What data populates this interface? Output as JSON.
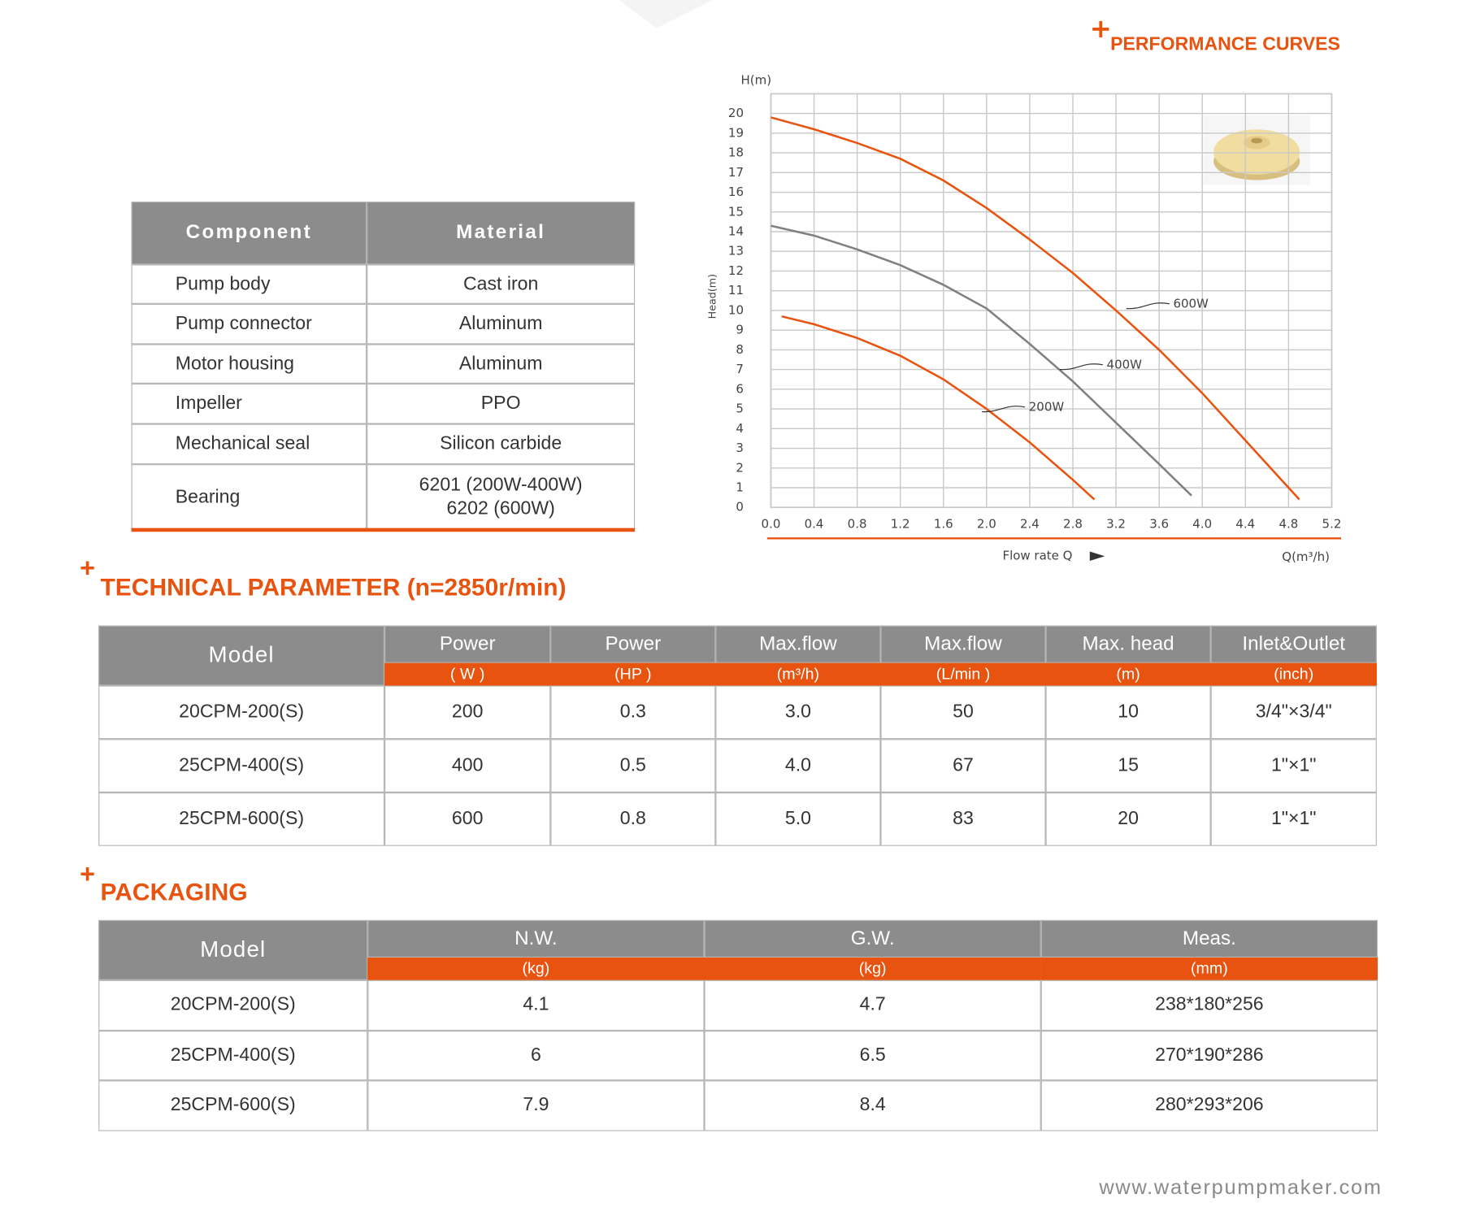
{
  "chart_data": {
    "type": "line",
    "title": "PERFORMANCE CURVES",
    "y_unit_label": "H(m)",
    "ylabel": "Head(m)",
    "xlabel": "Flow rate Q",
    "x_unit_label": "Q(m³/h)",
    "xlim": [
      0,
      5.2
    ],
    "ylim": [
      0,
      21
    ],
    "xticks": [
      {
        "value": 0,
        "label": "0.0"
      },
      0.4,
      0.8,
      1.2,
      1.6,
      {
        "value": 2,
        "label": "2.0"
      },
      2.4,
      2.8,
      3.2,
      3.6,
      {
        "value": 4,
        "label": "4.0"
      },
      4.4,
      4.8,
      5.2
    ],
    "yticks": [
      0,
      1,
      2,
      3,
      4,
      5,
      6,
      7,
      8,
      9,
      10,
      11,
      12,
      13,
      14,
      15,
      16,
      17,
      18,
      19,
      20
    ],
    "grid": true,
    "series": [
      {
        "name": "600W",
        "color": "#e8540f",
        "x": [
          0,
          0.4,
          0.8,
          1.2,
          1.6,
          2.0,
          2.4,
          2.8,
          3.2,
          3.6,
          4.0,
          4.4,
          4.9
        ],
        "values": [
          19.8,
          19.2,
          18.5,
          17.7,
          16.6,
          15.2,
          13.6,
          11.9,
          10.0,
          8.0,
          5.8,
          3.4,
          0.4
        ]
      },
      {
        "name": "400W",
        "color": "#808080",
        "x": [
          0,
          0.4,
          0.8,
          1.2,
          1.6,
          2.0,
          2.4,
          2.8,
          3.2,
          3.6,
          3.9
        ],
        "values": [
          14.3,
          13.8,
          13.1,
          12.3,
          11.3,
          10.1,
          8.3,
          6.4,
          4.3,
          2.2,
          0.6
        ]
      },
      {
        "name": "200W",
        "color": "#e8540f",
        "x": [
          0.1,
          0.4,
          0.8,
          1.2,
          1.6,
          2.0,
          2.4,
          2.8,
          3.0
        ],
        "values": [
          9.7,
          9.3,
          8.6,
          7.7,
          6.5,
          5.0,
          3.3,
          1.4,
          0.4
        ]
      }
    ]
  },
  "materials": {
    "headers": [
      "Component",
      "Material"
    ],
    "rows": [
      [
        "Pump body",
        [
          "Cast iron"
        ]
      ],
      [
        "Pump connector",
        [
          "Aluminum"
        ]
      ],
      [
        "Motor housing",
        [
          "Aluminum"
        ]
      ],
      [
        "Impeller",
        [
          "PPO"
        ]
      ],
      [
        "Mechanical seal",
        [
          "Silicon carbide"
        ]
      ],
      [
        "Bearing",
        [
          "6201 (200W-400W)",
          "6202 (600W)"
        ]
      ]
    ]
  },
  "technical_parameter": {
    "title": "TECHNICAL PARAMETER  (n=2850r/min)",
    "headers": [
      {
        "name": "Model"
      },
      {
        "name": "Power",
        "unit": "( W )"
      },
      {
        "name": "Power",
        "unit": "(HP )"
      },
      {
        "name": "Max.flow",
        "unit": "(m³/h)"
      },
      {
        "name": "Max.flow",
        "unit": "(L/min )"
      },
      {
        "name": "Max. head",
        "unit": "(m)"
      },
      {
        "name": "Inlet&Outlet",
        "unit": "(inch)"
      }
    ],
    "rows": [
      [
        "20CPM-200(S)",
        "200",
        "0.3",
        "3.0",
        "50",
        "10",
        "3/4\"×3/4\""
      ],
      [
        "25CPM-400(S)",
        "400",
        "0.5",
        "4.0",
        "67",
        "15",
        "1\"×1\""
      ],
      [
        "25CPM-600(S)",
        "600",
        "0.8",
        "5.0",
        "83",
        "20",
        "1\"×1\""
      ]
    ]
  },
  "packaging": {
    "title": "PACKAGING",
    "headers": [
      {
        "name": "Model"
      },
      {
        "name": "N.W.",
        "unit": "(kg)"
      },
      {
        "name": "G.W.",
        "unit": "(kg)"
      },
      {
        "name": "Meas.",
        "unit": "(mm)"
      }
    ],
    "rows": [
      [
        "20CPM-200(S)",
        "4.1",
        "4.7",
        "238*180*256"
      ],
      [
        "25CPM-400(S)",
        "6",
        "6.5",
        "270*190*286"
      ],
      [
        "25CPM-600(S)",
        "7.9",
        "8.4",
        "280*293*206"
      ]
    ]
  },
  "footer": "www.waterpumpmaker.com"
}
